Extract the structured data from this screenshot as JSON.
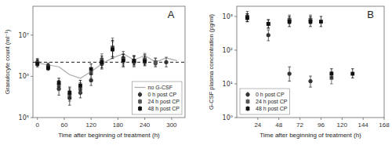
{
  "chart_data": [
    {
      "type": "line",
      "title": "A",
      "x_label": "Time after beginning of treatment (h)",
      "y_label": "Granulocyte count (ml⁻¹)",
      "log": "y",
      "grid": false,
      "legend": "lower right",
      "xlim": [
        -10,
        330
      ],
      "xticks": [
        0,
        60,
        120,
        180,
        240,
        300
      ],
      "ylim": [
        100000,
        50000000
      ],
      "yticks": [
        {
          "value": 100000,
          "label": "10⁵"
        },
        {
          "value": 1000000,
          "label": "10⁶"
        },
        {
          "value": 10000000,
          "label": "10⁷"
        }
      ],
      "hline": 2200000,
      "series": [
        {
          "name": "no G-CSF",
          "type": "line",
          "line_style": "solid",
          "color": "#aaaaaa",
          "x": [
            0,
            24,
            48,
            72,
            96,
            120,
            144,
            168,
            192,
            216,
            240,
            264,
            288,
            312
          ],
          "values": [
            2100000,
            1900000,
            1700000,
            1100000,
            900000,
            1300000,
            2000000,
            2800000,
            3500000,
            2500000,
            3200000,
            2200000,
            2800000,
            2400000
          ]
        },
        {
          "name": "0 h post CP",
          "type": "scatter",
          "marker": "circle",
          "color": "#333333",
          "x": [
            0,
            24,
            48,
            72,
            96,
            120,
            144,
            168,
            192,
            216,
            240,
            264,
            288
          ],
          "values": [
            2200000,
            1800000,
            500000,
            300000,
            400000,
            800000,
            2000000,
            4500000,
            2800000,
            2200000,
            2500000,
            2100000,
            2200000
          ],
          "yerr_lo": [
            300000,
            200000,
            150000,
            100000,
            100000,
            200000,
            500000,
            1500000,
            800000,
            500000,
            600000,
            400000,
            500000
          ],
          "yerr_hi": [
            500000,
            300000,
            200000,
            150000,
            150000,
            300000,
            800000,
            2500000,
            1200000,
            800000,
            900000,
            600000,
            700000
          ]
        },
        {
          "name": "24 h post CP",
          "type": "scatter",
          "marker": "square",
          "color": "#555555",
          "x": [
            0,
            24,
            48,
            72,
            96,
            120,
            144,
            168,
            192,
            216,
            240,
            264
          ],
          "values": [
            2100000,
            1700000,
            600000,
            350000,
            500000,
            1200000,
            2500000,
            5000000,
            2500000,
            2300000,
            2600000,
            2200000
          ],
          "yerr_lo": [
            300000,
            200000,
            150000,
            100000,
            100000,
            300000,
            600000,
            2000000,
            700000,
            500000,
            600000,
            400000
          ],
          "yerr_hi": [
            500000,
            300000,
            200000,
            150000,
            200000,
            400000,
            1000000,
            3500000,
            1000000,
            800000,
            1000000,
            600000
          ]
        },
        {
          "name": "48 h post CP",
          "type": "scatter",
          "marker": "square",
          "color": "#111111",
          "x": [
            0,
            24,
            48,
            72,
            96,
            120,
            144,
            168,
            192,
            216,
            240
          ],
          "values": [
            2000000,
            1600000,
            700000,
            400000,
            600000,
            1500000,
            2200000,
            4500000,
            2400000,
            2400000,
            2300000
          ],
          "yerr_lo": [
            300000,
            200000,
            150000,
            100000,
            150000,
            400000,
            600000,
            1800000,
            700000,
            500000,
            500000
          ],
          "yerr_hi": [
            500000,
            300000,
            200000,
            150000,
            200000,
            500000,
            900000,
            3000000,
            1000000,
            800000,
            800000
          ]
        }
      ]
    },
    {
      "type": "scatter",
      "title": "B",
      "x_label": "Time after beginning of treatment (h)",
      "y_label": "G-CSF plasma concentration (pg/ml)",
      "log": "y",
      "grid": false,
      "legend": "lower left",
      "xlim": [
        0,
        168
      ],
      "xticks": [
        24,
        48,
        72,
        96,
        120,
        144,
        168
      ],
      "ylim": [
        1,
        2000
      ],
      "yticks": [
        {
          "value": 1,
          "label": "10⁰"
        },
        {
          "value": 10,
          "label": "10¹"
        },
        {
          "value": 100,
          "label": "10²"
        },
        {
          "value": 1000,
          "label": "10³"
        }
      ],
      "series": [
        {
          "name": "0 h post CP",
          "type": "scatter",
          "marker": "circle",
          "color": "#333333",
          "x": [
            12,
            36,
            60,
            84
          ],
          "values": [
            1000,
            280,
            20,
            12
          ],
          "yerr_lo": [
            300,
            90,
            8,
            4
          ],
          "yerr_hi": [
            400,
            120,
            12,
            5
          ]
        },
        {
          "name": "24 h post CP",
          "type": "scatter",
          "marker": "square",
          "color": "#555555",
          "x": [
            12,
            36,
            60,
            84,
            108
          ],
          "values": [
            900,
            600,
            800,
            800,
            15
          ],
          "yerr_lo": [
            200,
            150,
            200,
            200,
            5
          ],
          "yerr_hi": [
            300,
            200,
            300,
            300,
            8
          ]
        },
        {
          "name": "48 h post CP",
          "type": "scatter",
          "marker": "square",
          "color": "#111111",
          "x": [
            12,
            36,
            60,
            84,
            96,
            108,
            132
          ],
          "values": [
            900,
            600,
            700,
            700,
            700,
            20,
            20
          ],
          "yerr_lo": [
            200,
            150,
            200,
            200,
            200,
            5,
            5
          ],
          "yerr_hi": [
            300,
            200,
            300,
            300,
            300,
            8,
            8
          ]
        }
      ]
    }
  ]
}
